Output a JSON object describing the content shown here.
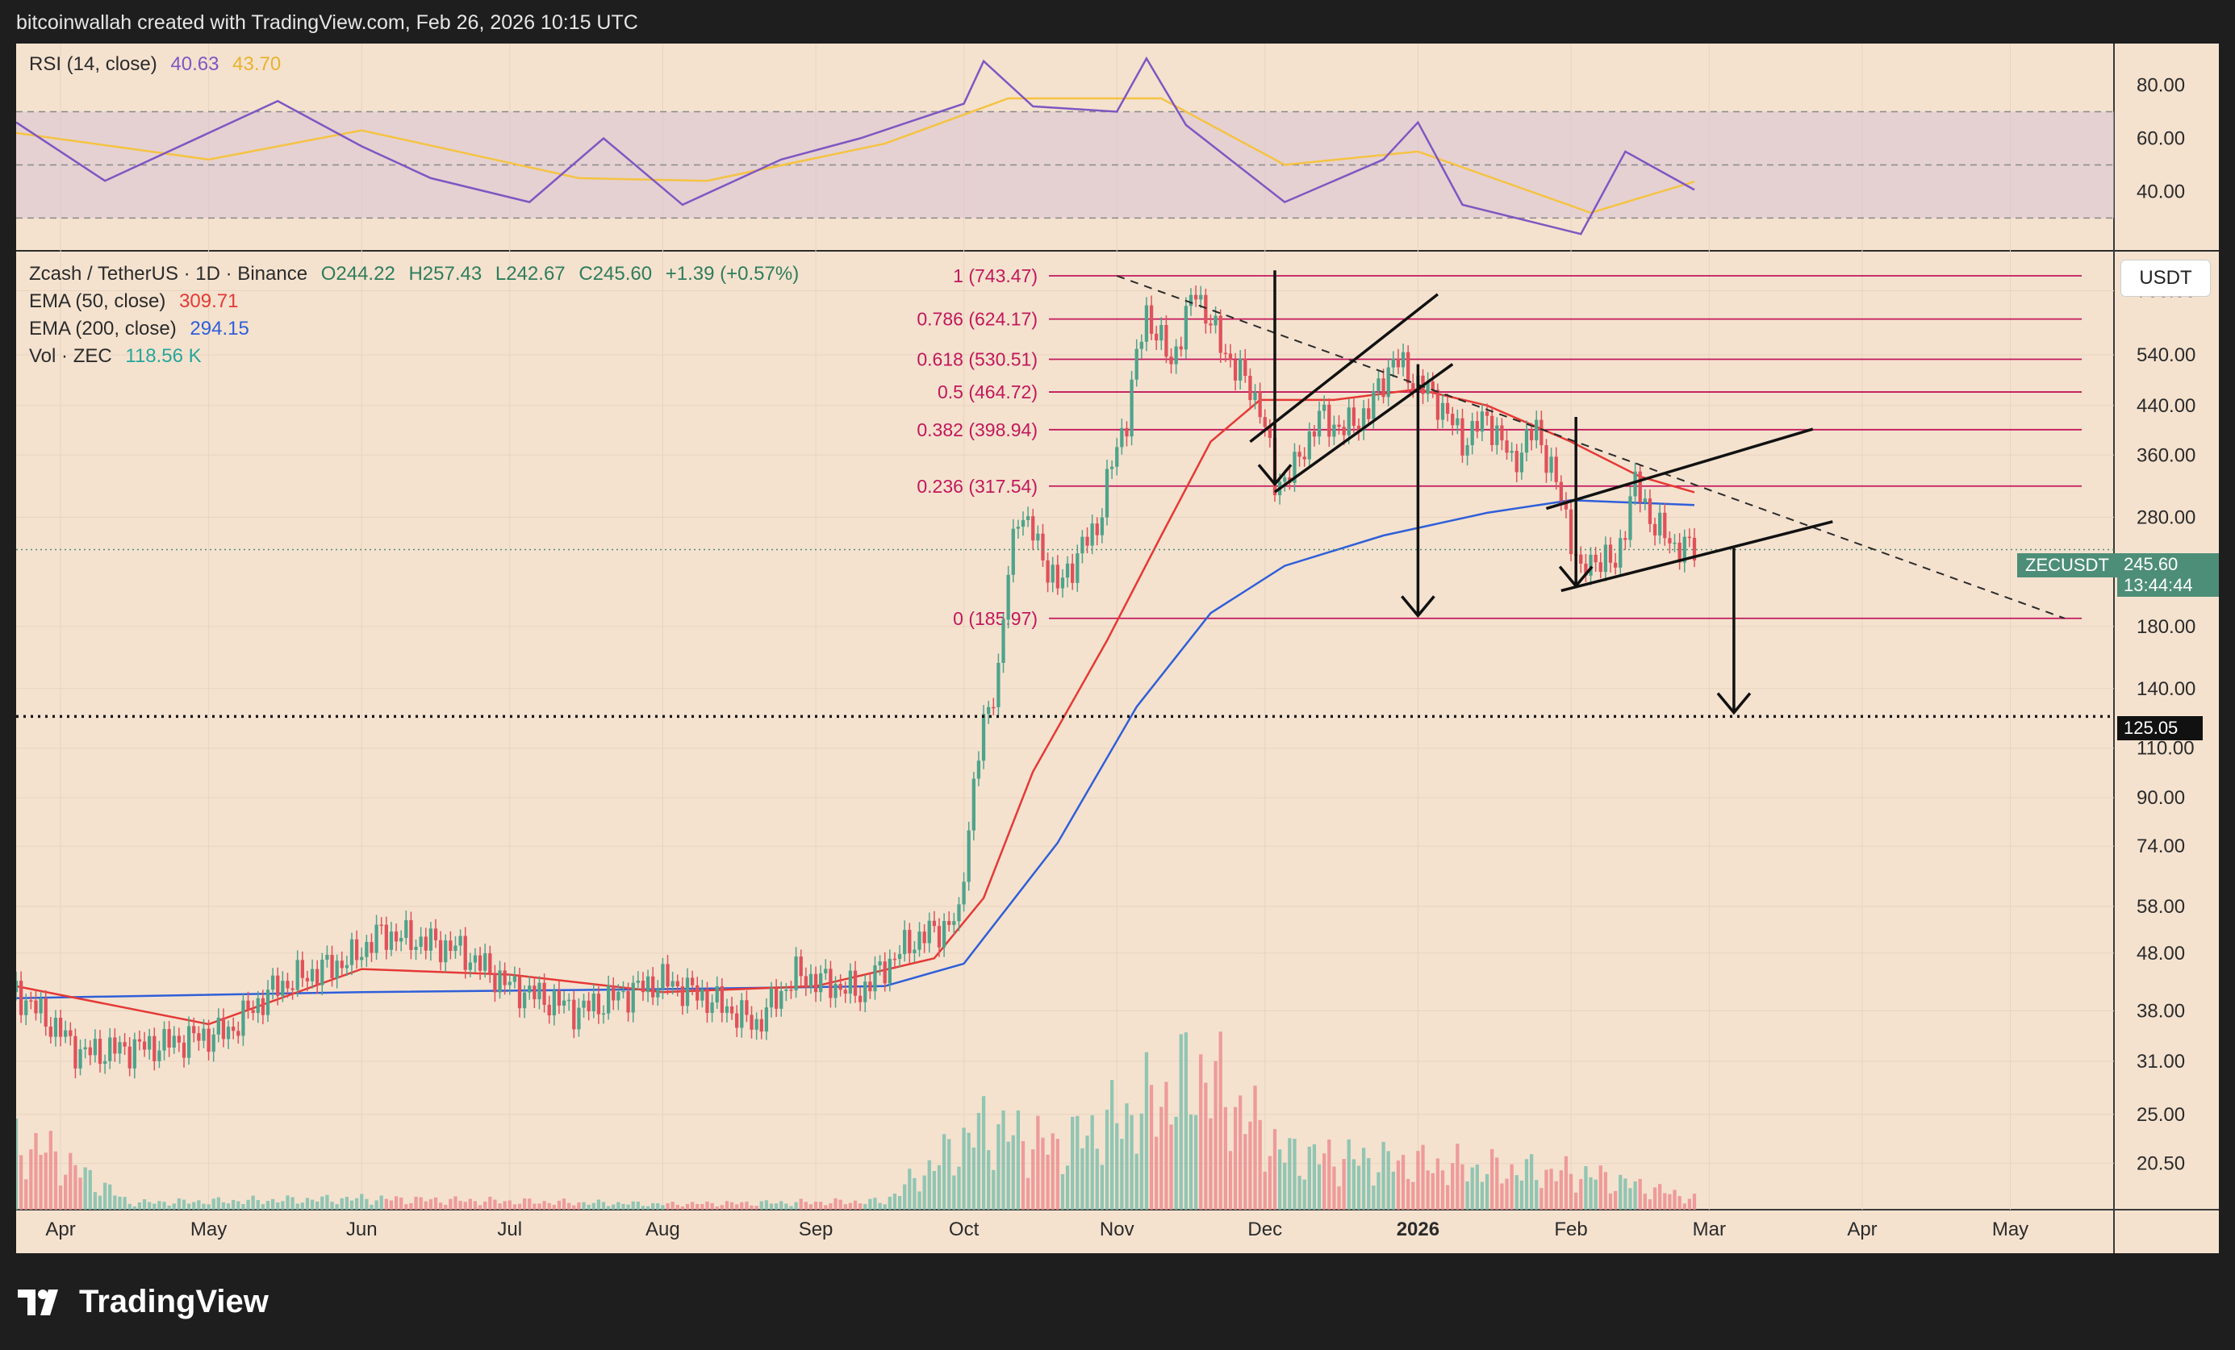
{
  "header": {
    "credit": "bitcoinwallah created with TradingView.com, Feb 26, 2026 10:15 UTC"
  },
  "footer": {
    "brand": "TradingView"
  },
  "rsi_panel": {
    "label": "RSI (14, close)",
    "rsi_value": "40.63",
    "ma_value": "43.70",
    "ticks": [
      "80.00",
      "60.00",
      "40.00"
    ],
    "tick_values": [
      80,
      60,
      40
    ],
    "band_upper": 70,
    "band_mid": 50,
    "band_lower": 30,
    "range": [
      18,
      95
    ],
    "colors": {
      "rsi": "#7e57c2",
      "ma": "#f5c342",
      "band": "#d8c2d6"
    }
  },
  "legend": {
    "title": "Zcash / TetherUS · 1D · Binance",
    "open": "O244.22",
    "high": "H257.43",
    "low": "L242.67",
    "close": "C245.60",
    "change": "+1.39 (+0.57%)",
    "ema50_label": "EMA (50, close)",
    "ema50_value": "309.71",
    "ema200_label": "EMA (200, close)",
    "ema200_value": "294.15",
    "vol_label": "Vol · ZEC",
    "vol_value": "118.56 K"
  },
  "price_axis": {
    "currency": "USDT",
    "ticks": [
      "700.00",
      "540.00",
      "440.00",
      "360.00",
      "280.00",
      "180.00",
      "140.00",
      "110.00",
      "90.00",
      "74.00",
      "58.00",
      "48.00",
      "38.00",
      "31.00",
      "25.00",
      "20.50"
    ],
    "tick_values": [
      700,
      540,
      440,
      360,
      280,
      180,
      140,
      110,
      90,
      74,
      58,
      48,
      38,
      31,
      25,
      20.5
    ],
    "pair_label": "ZECUSDT",
    "last_price": "245.60",
    "countdown": "13:44:44",
    "horizontal_line": "125.05"
  },
  "time_axis": {
    "labels": [
      "Apr",
      "May",
      "Jun",
      "Jul",
      "Aug",
      "Sep",
      "Oct",
      "Nov",
      "Dec",
      "2026",
      "Feb",
      "Mar",
      "Apr",
      "May"
    ],
    "dates": [
      "2025-04-01",
      "2025-05-01",
      "2025-06-01",
      "2025-07-01",
      "2025-08-01",
      "2025-09-01",
      "2025-10-01",
      "2025-11-01",
      "2025-12-01",
      "2026-01-01",
      "2026-02-01",
      "2026-03-01",
      "2026-04-01",
      "2026-05-01"
    ],
    "bold": "2026"
  },
  "fibonacci": {
    "levels": [
      {
        "label": "1 (743.47)",
        "value": 743.47
      },
      {
        "label": "0.786 (624.17)",
        "value": 624.17
      },
      {
        "label": "0.618 (530.51)",
        "value": 530.51
      },
      {
        "label": "0.5 (464.72)",
        "value": 464.72
      },
      {
        "label": "0.382 (398.94)",
        "value": 398.94
      },
      {
        "label": "0.236 (317.54)",
        "value": 317.54
      },
      {
        "label": "0 (185.97)",
        "value": 185.97
      }
    ],
    "color": "#c2185b"
  },
  "colors": {
    "up": "#4fa38b",
    "down": "#e0515a",
    "ema50": "#e53935",
    "ema200": "#2f5fd8",
    "vol_up": "#7fbfae",
    "vol_down": "#ec8e91",
    "background": "#f4e2cf"
  },
  "chart_data": {
    "type": "candlestick",
    "title": "Zcash / TetherUS · 1D · Binance",
    "scale": "log",
    "ylim": [
      17,
      820
    ],
    "xlim": [
      "2025-03-23",
      "2026-05-22"
    ],
    "grid": true,
    "ohlc_last": {
      "open": 244.22,
      "high": 257.43,
      "low": 242.67,
      "close": 245.6
    },
    "close_path": [
      [
        "2025-03-23",
        41
      ],
      [
        "2025-04-05",
        32
      ],
      [
        "2025-04-20",
        33
      ],
      [
        "2025-05-05",
        35
      ],
      [
        "2025-05-15",
        42
      ],
      [
        "2025-05-30",
        47
      ],
      [
        "2025-06-05",
        52
      ],
      [
        "2025-06-20",
        49
      ],
      [
        "2025-07-01",
        42
      ],
      [
        "2025-07-15",
        38
      ],
      [
        "2025-08-01",
        43
      ],
      [
        "2025-08-10",
        40
      ],
      [
        "2025-08-20",
        36
      ],
      [
        "2025-08-28",
        44
      ],
      [
        "2025-09-10",
        41
      ],
      [
        "2025-09-20",
        50
      ],
      [
        "2025-09-30",
        55
      ],
      [
        "2025-10-05",
        120
      ],
      [
        "2025-10-08",
        150
      ],
      [
        "2025-10-12",
        290
      ],
      [
        "2025-10-20",
        210
      ],
      [
        "2025-10-28",
        270
      ],
      [
        "2025-11-03",
        420
      ],
      [
        "2025-11-07",
        640
      ],
      [
        "2025-11-12",
        520
      ],
      [
        "2025-11-17",
        700
      ],
      [
        "2025-11-22",
        560
      ],
      [
        "2025-11-26",
        500
      ],
      [
        "2025-11-30",
        440
      ],
      [
        "2025-12-03",
        320
      ],
      [
        "2025-12-07",
        340
      ],
      [
        "2025-12-12",
        420
      ],
      [
        "2025-12-17",
        400
      ],
      [
        "2025-12-22",
        430
      ],
      [
        "2025-12-27",
        530
      ],
      [
        "2026-01-01",
        480
      ],
      [
        "2026-01-05",
        450
      ],
      [
        "2026-01-10",
        380
      ],
      [
        "2026-01-15",
        420
      ],
      [
        "2026-01-20",
        350
      ],
      [
        "2026-01-25",
        400
      ],
      [
        "2026-01-30",
        300
      ],
      [
        "2026-02-03",
        220
      ],
      [
        "2026-02-06",
        240
      ],
      [
        "2026-02-10",
        230
      ],
      [
        "2026-02-14",
        320
      ],
      [
        "2026-02-18",
        270
      ],
      [
        "2026-02-22",
        250
      ],
      [
        "2026-02-26",
        245.6
      ]
    ],
    "ema50_path": [
      [
        "2025-03-23",
        42
      ],
      [
        "2025-05-01",
        36
      ],
      [
        "2025-06-01",
        45
      ],
      [
        "2025-07-01",
        44
      ],
      [
        "2025-08-01",
        41
      ],
      [
        "2025-09-01",
        42
      ],
      [
        "2025-09-25",
        47
      ],
      [
        "2025-10-05",
        60
      ],
      [
        "2025-10-15",
        100
      ],
      [
        "2025-10-30",
        170
      ],
      [
        "2025-11-10",
        260
      ],
      [
        "2025-11-20",
        380
      ],
      [
        "2025-11-30",
        450
      ],
      [
        "2025-12-15",
        450
      ],
      [
        "2026-01-01",
        470
      ],
      [
        "2026-01-15",
        440
      ],
      [
        "2026-02-01",
        380
      ],
      [
        "2026-02-15",
        330
      ],
      [
        "2026-02-26",
        309.71
      ]
    ],
    "ema200_path": [
      [
        "2025-03-23",
        40
      ],
      [
        "2025-06-01",
        41
      ],
      [
        "2025-08-01",
        41.5
      ],
      [
        "2025-09-15",
        42
      ],
      [
        "2025-10-01",
        46
      ],
      [
        "2025-10-20",
        75
      ],
      [
        "2025-11-05",
        130
      ],
      [
        "2025-11-20",
        190
      ],
      [
        "2025-12-05",
        230
      ],
      [
        "2025-12-25",
        260
      ],
      [
        "2026-01-15",
        285
      ],
      [
        "2026-02-01",
        300
      ],
      [
        "2026-02-26",
        294.15
      ]
    ],
    "rsi_path": [
      [
        "2025-03-23",
        66
      ],
      [
        "2025-04-10",
        44
      ],
      [
        "2025-05-01",
        62
      ],
      [
        "2025-05-15",
        74
      ],
      [
        "2025-06-01",
        57
      ],
      [
        "2025-06-15",
        45
      ],
      [
        "2025-07-05",
        36
      ],
      [
        "2025-07-20",
        60
      ],
      [
        "2025-08-05",
        35
      ],
      [
        "2025-08-25",
        52
      ],
      [
        "2025-09-10",
        60
      ],
      [
        "2025-10-01",
        73
      ],
      [
        "2025-10-05",
        89
      ],
      [
        "2025-10-15",
        72
      ],
      [
        "2025-11-01",
        70
      ],
      [
        "2025-11-07",
        90
      ],
      [
        "2025-11-15",
        65
      ],
      [
        "2025-12-05",
        36
      ],
      [
        "2025-12-25",
        52
      ],
      [
        "2026-01-01",
        66
      ],
      [
        "2026-01-10",
        35
      ],
      [
        "2026-02-03",
        24
      ],
      [
        "2026-02-12",
        55
      ],
      [
        "2026-02-26",
        40.63
      ]
    ],
    "rsi_ma_path": [
      [
        "2025-03-23",
        62
      ],
      [
        "2025-05-01",
        52
      ],
      [
        "2025-06-01",
        63
      ],
      [
        "2025-07-15",
        45
      ],
      [
        "2025-08-10",
        44
      ],
      [
        "2025-09-15",
        58
      ],
      [
        "2025-10-10",
        75
      ],
      [
        "2025-11-10",
        75
      ],
      [
        "2025-12-05",
        50
      ],
      [
        "2026-01-01",
        55
      ],
      [
        "2026-02-05",
        32
      ],
      [
        "2026-02-26",
        43.7
      ]
    ],
    "volume_path": [
      [
        "2025-03-28",
        0.45
      ],
      [
        "2025-04-15",
        0.05
      ],
      [
        "2025-06-01",
        0.08
      ],
      [
        "2025-08-01",
        0.04
      ],
      [
        "2025-09-15",
        0.06
      ],
      [
        "2025-10-05",
        0.6
      ],
      [
        "2025-10-20",
        0.45
      ],
      [
        "2025-11-10",
        0.8
      ],
      [
        "2025-11-18",
        1.0
      ],
      [
        "2025-12-05",
        0.4
      ],
      [
        "2026-01-01",
        0.33
      ],
      [
        "2026-02-05",
        0.25
      ],
      [
        "2026-02-26",
        0.08
      ]
    ]
  }
}
